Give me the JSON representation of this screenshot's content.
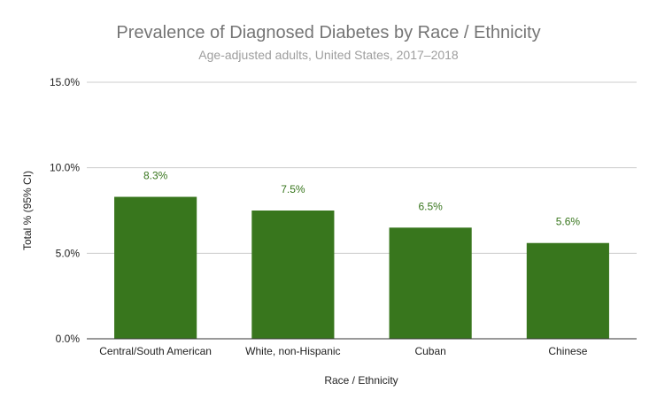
{
  "chart_data": {
    "type": "bar",
    "title": "Prevalence of Diagnosed Diabetes by Race / Ethnicity",
    "subtitle": "Age-adjusted adults, United States, 2017–2018",
    "xlabel": "Race  / Ethnicity",
    "ylabel": "Total % (95% CI)",
    "categories": [
      "Central/South American",
      "White, non-Hispanic",
      "Cuban",
      "Chinese"
    ],
    "values": [
      8.3,
      7.5,
      6.5,
      5.6
    ],
    "data_labels": [
      "8.3%",
      "7.5%",
      "6.5%",
      "5.6%"
    ],
    "ylim": [
      0,
      15
    ],
    "yticks": [
      0,
      5,
      10,
      15
    ],
    "ytick_labels": [
      "0.0%",
      "5.0%",
      "10.0%",
      "15.0%"
    ],
    "grid": true,
    "legend": "none",
    "bar_color": "#38761d"
  }
}
